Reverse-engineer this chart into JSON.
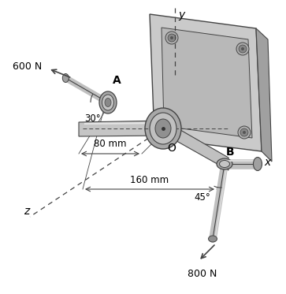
{
  "bg_color": "#ffffff",
  "dark": "#444444",
  "shaft_fill": "#c0c0c0",
  "shaft_light": "#d8d8d8",
  "shaft_dark": "#909090",
  "plate_outer": "#c8c8c8",
  "plate_inner": "#b8b8b8",
  "plate_face": "#d4d4d4",
  "bolt_outer": "#a0a0a0",
  "bolt_inner": "#787878",
  "collar_fill": "#b0b0b0",
  "collar_ring": "#c8c8c8",
  "axis_label_A": "A",
  "axis_label_O": "O",
  "axis_label_B": "B",
  "label_x": "x",
  "label_y": "y",
  "label_z": "z",
  "force1_label": "600 N",
  "force2_label": "800 N",
  "angle1_label": "30°",
  "angle2_label": "45°",
  "dim1_label": "80 mm",
  "dim2_label": "160 mm",
  "figsize": [
    3.63,
    3.73
  ],
  "dpi": 100
}
